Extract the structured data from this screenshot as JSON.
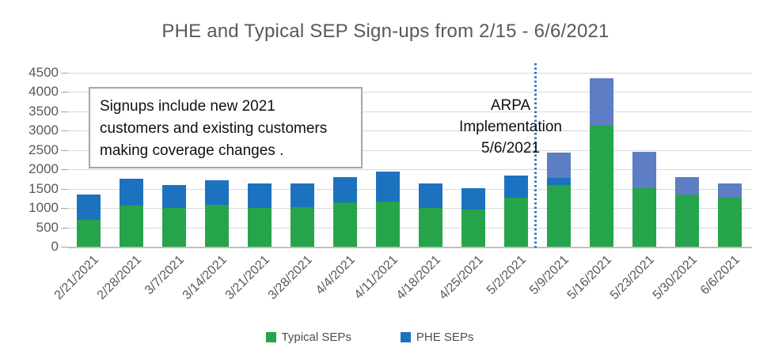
{
  "chart_data": {
    "type": "bar",
    "stacked": true,
    "title": "PHE and Typical SEP Sign-ups from 2/15 - 6/6/2021",
    "categories": [
      "2/21/2021",
      "2/28/2021",
      "3/7/2021",
      "3/14/2021",
      "3/21/2021",
      "3/28/2021",
      "4/4/2021",
      "4/11/2021",
      "4/18/2021",
      "4/25/2021",
      "5/2/2021",
      "5/9/2021",
      "5/16/2021",
      "5/23/2021",
      "5/30/2021",
      "6/6/2021"
    ],
    "series": [
      {
        "name": "Typical SEPs",
        "color": "#26a44b",
        "values": [
          700,
          1060,
          1010,
          1080,
          1000,
          1030,
          1150,
          1170,
          1010,
          960,
          1270,
          1590,
          3130,
          1520,
          1350,
          1270
        ]
      },
      {
        "name": "PHE SEPs",
        "color": "#1d72c0",
        "values": [
          660,
          690,
          580,
          640,
          640,
          610,
          660,
          780,
          630,
          545,
          580,
          185,
          0,
          0,
          0,
          0
        ]
      },
      {
        "name": "PHE SEPs",
        "color": "#5d7dc4",
        "values": [
          0,
          0,
          0,
          0,
          0,
          0,
          0,
          0,
          0,
          0,
          0,
          650,
          1220,
          940,
          440,
          370
        ]
      }
    ],
    "ylim": [
      0,
      4500
    ],
    "yticks": [
      0,
      500,
      1000,
      1500,
      2000,
      2500,
      3000,
      3500,
      4000,
      4500
    ],
    "grid": true,
    "legend": {
      "position": "bottom",
      "items": [
        {
          "label": "Typical SEPs",
          "color": "#26a44b"
        },
        {
          "label": "PHE SEPs",
          "color": "#1d72c0"
        }
      ]
    },
    "annotations": {
      "note_box_lines": [
        "Signups include new 2021",
        "customers and existing customers",
        "making coverage changes ."
      ],
      "arpa_lines": [
        "ARPA",
        "Implementation",
        "5/6/2021"
      ],
      "arpa_divider_color": "#2e75b6",
      "arpa_divider_between": [
        "5/2/2021",
        "5/9/2021"
      ]
    },
    "colors": {
      "gridline": "#d9d9d9",
      "tick": "#a6a6a6",
      "axis_line": "#bfbfbf",
      "text": "#595959"
    }
  }
}
